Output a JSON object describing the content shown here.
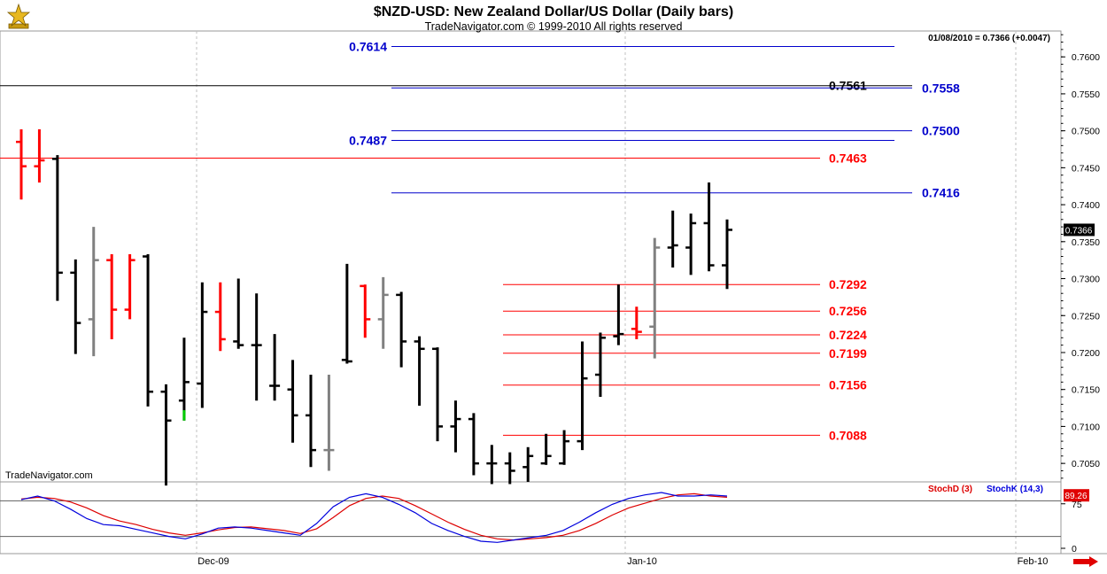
{
  "header": {
    "title": "$NZD-USD:  New Zealand Dollar/US Dollar  (Daily bars)",
    "copyright": "TradeNavigator.com © 1999-2010 All rights reserved",
    "last_quote": "01/08/2010 = 0.7366 (+0.0047)",
    "watermark": "TradeNavigator.com"
  },
  "colors": {
    "up_bar": "#000000",
    "down_bar": "#ff0000",
    "neutral_bar": "#808080",
    "signal_bar": "#00cc00",
    "resistance_line": "#0000cc",
    "support_line": "#cc0000",
    "stoch_d": "#dd0000",
    "stoch_k": "#0000dd",
    "grid": "#c0c0c0"
  },
  "chart_data": [
    {
      "type": "ohlc",
      "ylim": [
        0.7025,
        0.7635
      ],
      "yticks": [
        "0.7050",
        "0.7100",
        "0.7150",
        "0.7200",
        "0.7250",
        "0.7300",
        "0.7350",
        "0.7400",
        "0.7450",
        "0.7500",
        "0.7550",
        "0.7600"
      ],
      "xticks": [
        "Dec-09",
        "Jan-10",
        "Feb-10"
      ],
      "price_badge": "0.7366",
      "bars": [
        {
          "o": 0.7485,
          "h": 0.7502,
          "l": 0.7407,
          "c": 0.7452,
          "color": "red"
        },
        {
          "o": 0.7452,
          "h": 0.7502,
          "l": 0.743,
          "c": 0.746,
          "color": "red"
        },
        {
          "o": 0.7462,
          "h": 0.7467,
          "l": 0.727,
          "c": 0.7308,
          "color": "black"
        },
        {
          "o": 0.7308,
          "h": 0.7326,
          "l": 0.7198,
          "c": 0.724,
          "color": "black"
        },
        {
          "o": 0.7245,
          "h": 0.737,
          "l": 0.7195,
          "c": 0.7325,
          "color": "gray"
        },
        {
          "o": 0.7325,
          "h": 0.7333,
          "l": 0.7218,
          "c": 0.7258,
          "color": "red"
        },
        {
          "o": 0.7258,
          "h": 0.7333,
          "l": 0.7245,
          "c": 0.7325,
          "color": "red"
        },
        {
          "o": 0.733,
          "h": 0.7333,
          "l": 0.7127,
          "c": 0.7147,
          "color": "black"
        },
        {
          "o": 0.7147,
          "h": 0.7157,
          "l": 0.702,
          "c": 0.7108,
          "color": "black"
        },
        {
          "o": 0.7135,
          "h": 0.722,
          "l": 0.7108,
          "c": 0.716,
          "color": "black"
        },
        {
          "o": 0.7158,
          "h": 0.7295,
          "l": 0.7125,
          "c": 0.7255,
          "color": "black"
        },
        {
          "o": 0.7255,
          "h": 0.7295,
          "l": 0.7202,
          "c": 0.7218,
          "color": "red"
        },
        {
          "o": 0.7215,
          "h": 0.73,
          "l": 0.7205,
          "c": 0.721,
          "color": "black"
        },
        {
          "o": 0.721,
          "h": 0.728,
          "l": 0.7135,
          "c": 0.721,
          "color": "black"
        },
        {
          "o": 0.7155,
          "h": 0.7225,
          "l": 0.7135,
          "c": 0.7155,
          "color": "black"
        },
        {
          "o": 0.715,
          "h": 0.719,
          "l": 0.7078,
          "c": 0.7115,
          "color": "black"
        },
        {
          "o": 0.7115,
          "h": 0.717,
          "l": 0.7045,
          "c": 0.7068,
          "color": "black"
        },
        {
          "o": 0.7068,
          "h": 0.717,
          "l": 0.704,
          "c": 0.7068,
          "color": "gray"
        },
        {
          "o": 0.719,
          "h": 0.732,
          "l": 0.7185,
          "c": 0.7188,
          "color": "black"
        },
        {
          "o": 0.729,
          "h": 0.7292,
          "l": 0.722,
          "c": 0.7245,
          "color": "red"
        },
        {
          "o": 0.7245,
          "h": 0.7302,
          "l": 0.7205,
          "c": 0.7278,
          "color": "gray"
        },
        {
          "o": 0.7278,
          "h": 0.7282,
          "l": 0.718,
          "c": 0.7215,
          "color": "black"
        },
        {
          "o": 0.7215,
          "h": 0.7222,
          "l": 0.7128,
          "c": 0.7205,
          "color": "black"
        },
        {
          "o": 0.7205,
          "h": 0.7207,
          "l": 0.708,
          "c": 0.71,
          "color": "black"
        },
        {
          "o": 0.71,
          "h": 0.7135,
          "l": 0.7065,
          "c": 0.711,
          "color": "black"
        },
        {
          "o": 0.711,
          "h": 0.7118,
          "l": 0.7034,
          "c": 0.705,
          "color": "black"
        },
        {
          "o": 0.705,
          "h": 0.7075,
          "l": 0.7022,
          "c": 0.705,
          "color": "black"
        },
        {
          "o": 0.705,
          "h": 0.7065,
          "l": 0.7022,
          "c": 0.704,
          "color": "black"
        },
        {
          "o": 0.7045,
          "h": 0.7072,
          "l": 0.7025,
          "c": 0.706,
          "color": "black"
        },
        {
          "o": 0.705,
          "h": 0.709,
          "l": 0.7048,
          "c": 0.706,
          "color": "black"
        },
        {
          "o": 0.705,
          "h": 0.7095,
          "l": 0.7048,
          "c": 0.708,
          "color": "black"
        },
        {
          "o": 0.708,
          "h": 0.7215,
          "l": 0.7068,
          "c": 0.7165,
          "color": "black"
        },
        {
          "o": 0.717,
          "h": 0.7227,
          "l": 0.714,
          "c": 0.722,
          "color": "black"
        },
        {
          "o": 0.7222,
          "h": 0.7292,
          "l": 0.721,
          "c": 0.7225,
          "color": "black"
        },
        {
          "o": 0.7232,
          "h": 0.7262,
          "l": 0.7218,
          "c": 0.7228,
          "color": "red"
        },
        {
          "o": 0.7235,
          "h": 0.7355,
          "l": 0.7192,
          "c": 0.7342,
          "color": "gray"
        },
        {
          "o": 0.7342,
          "h": 0.7392,
          "l": 0.7315,
          "c": 0.7345,
          "color": "black"
        },
        {
          "o": 0.7342,
          "h": 0.7388,
          "l": 0.7305,
          "c": 0.7375,
          "color": "black"
        },
        {
          "o": 0.7375,
          "h": 0.743,
          "l": 0.731,
          "c": 0.7318,
          "color": "black"
        },
        {
          "o": 0.7318,
          "h": 0.738,
          "l": 0.7286,
          "c": 0.7366,
          "color": "black"
        }
      ],
      "marker_bar": {
        "index": 9,
        "low": 0.7108,
        "high": 0.7122
      },
      "levels": [
        {
          "value": 0.7614,
          "label": "0.7614",
          "color": "blue",
          "from": "mid",
          "label_side": "left"
        },
        {
          "value": 0.7561,
          "label": "0.7561",
          "color": "black",
          "from": "start",
          "label_side": "right"
        },
        {
          "value": 0.7558,
          "label": "0.7558",
          "color": "blue",
          "from": "mid",
          "label_side": "far"
        },
        {
          "value": 0.75,
          "label": "0.7500",
          "color": "blue",
          "from": "mid",
          "label_side": "far"
        },
        {
          "value": 0.7487,
          "label": "0.7487",
          "color": "blue",
          "from": "mid",
          "label_side": "left"
        },
        {
          "value": 0.7463,
          "label": "0.7463",
          "color": "red",
          "from": "start",
          "label_side": "right"
        },
        {
          "value": 0.7416,
          "label": "0.7416",
          "color": "blue",
          "from": "mid",
          "label_side": "far"
        },
        {
          "value": 0.7292,
          "label": "0.7292",
          "color": "red",
          "from": "late",
          "label_side": "right"
        },
        {
          "value": 0.7256,
          "label": "0.7256",
          "color": "red",
          "from": "late",
          "label_side": "right"
        },
        {
          "value": 0.7224,
          "label": "0.7224",
          "color": "red",
          "from": "late",
          "label_side": "right"
        },
        {
          "value": 0.7199,
          "label": "0.7199",
          "color": "red",
          "from": "late",
          "label_side": "right"
        },
        {
          "value": 0.7156,
          "label": "0.7156",
          "color": "red",
          "from": "late",
          "label_side": "right"
        },
        {
          "value": 0.7088,
          "label": "0.7088",
          "color": "red",
          "from": "late",
          "label_side": "right"
        }
      ]
    },
    {
      "type": "line",
      "ylim": [
        0,
        100
      ],
      "yticks": [
        "0",
        "75"
      ],
      "reference_lines": [
        20,
        80
      ],
      "value_badge": "89.26",
      "series": [
        {
          "name": "StochD (3)",
          "color": "red",
          "values": [
            83,
            86,
            84,
            78,
            68,
            55,
            46,
            40,
            32,
            26,
            22,
            26,
            31,
            35,
            36,
            33,
            30,
            25,
            33,
            52,
            72,
            84,
            88,
            84,
            72,
            58,
            44,
            32,
            22,
            16,
            14,
            16,
            18,
            22,
            30,
            42,
            56,
            68,
            76,
            84,
            90,
            92,
            88,
            86
          ]
        },
        {
          "name": "StochK (14,3)",
          "color": "blue",
          "values": [
            82,
            88,
            80,
            66,
            50,
            40,
            38,
            32,
            26,
            20,
            16,
            24,
            34,
            36,
            34,
            30,
            26,
            22,
            42,
            70,
            86,
            92,
            86,
            74,
            60,
            42,
            30,
            20,
            12,
            10,
            14,
            18,
            22,
            30,
            44,
            60,
            74,
            84,
            90,
            94,
            88,
            88,
            90,
            88
          ]
        }
      ]
    }
  ]
}
